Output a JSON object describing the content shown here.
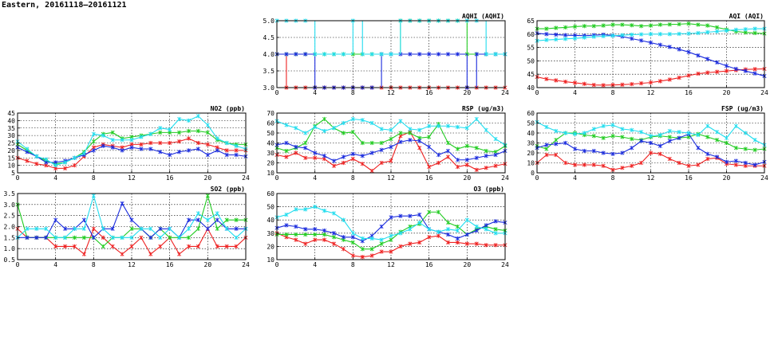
{
  "page_title": "Eastern, 20161118–20161121",
  "colors": {
    "red": "#ee2222",
    "green": "#22cc22",
    "blue": "#1a2bdd",
    "cyan": "#22ddee"
  },
  "chart_data": [
    {
      "type": "line",
      "title": "AQHI (AQHI)",
      "xlim": [
        0,
        24
      ],
      "ylim": [
        3,
        5
      ],
      "xticks": [
        0,
        4,
        8,
        12,
        16,
        20,
        24
      ],
      "yticks": [
        3.0,
        3.5,
        4.0,
        4.5,
        5.0
      ],
      "ytick_labels": [
        "3.0",
        "3.5",
        "4.0",
        "4.5",
        "5.0"
      ],
      "grid": true,
      "step": true,
      "series": [
        {
          "color": "red",
          "values": [
            4,
            3,
            3,
            3,
            3,
            3,
            3,
            3,
            3,
            3,
            3,
            3,
            3,
            3,
            3,
            3,
            3,
            3,
            3,
            3,
            3,
            3,
            3,
            3,
            3
          ]
        },
        {
          "color": "green",
          "values": [
            4,
            4,
            4,
            4,
            4,
            4,
            4,
            4,
            4,
            4,
            4,
            4,
            4,
            5,
            5,
            5,
            5,
            5,
            5,
            5,
            4,
            4,
            4,
            4,
            4
          ]
        },
        {
          "color": "blue",
          "values": [
            4,
            4,
            4,
            4,
            3,
            3,
            3,
            3,
            3,
            3,
            3,
            4,
            4,
            4,
            4,
            4,
            4,
            4,
            4,
            4,
            3,
            4,
            4,
            4,
            4
          ]
        },
        {
          "color": "cyan",
          "values": [
            5,
            5,
            5,
            5,
            4,
            4,
            4,
            4,
            5,
            4,
            4,
            4,
            4,
            5,
            5,
            5,
            5,
            5,
            5,
            5,
            5,
            5,
            4,
            4,
            4
          ]
        }
      ]
    },
    {
      "type": "line",
      "title": "AQI (AQI)",
      "xlim": [
        0,
        24
      ],
      "ylim": [
        40,
        65
      ],
      "xticks": [
        0,
        4,
        8,
        12,
        16,
        20,
        24
      ],
      "yticks": [
        40,
        45,
        50,
        55,
        60,
        65
      ],
      "ytick_labels": [
        "40",
        "45",
        "50",
        "55",
        "60",
        "65"
      ],
      "grid": true,
      "series": [
        {
          "color": "red",
          "values": [
            44,
            43.2,
            42.7,
            42.2,
            41.8,
            41.4,
            41,
            40.9,
            41,
            41.1,
            41.3,
            41.6,
            41.9,
            42.4,
            43,
            43.7,
            44.5,
            45.2,
            45.6,
            45.9,
            46.2,
            46.5,
            46.8,
            46.9,
            47
          ]
        },
        {
          "color": "green",
          "values": [
            62,
            62,
            62.3,
            62.5,
            62.8,
            63,
            63,
            63.2,
            63.5,
            63.5,
            63.3,
            63,
            63.2,
            63.5,
            63.6,
            63.7,
            63.9,
            63.5,
            63.2,
            62.5,
            61.7,
            61,
            60.6,
            60.4,
            60.2
          ]
        },
        {
          "color": "blue",
          "values": [
            60.3,
            60,
            59.8,
            59.6,
            59.5,
            59.4,
            59.6,
            59.8,
            59.5,
            59.1,
            58.3,
            57.6,
            56.8,
            56,
            55.2,
            54.3,
            53.3,
            52,
            50.7,
            49.4,
            48.1,
            47,
            46.2,
            45.3,
            44.3
          ]
        },
        {
          "color": "cyan",
          "values": [
            57.5,
            57.8,
            58,
            58.2,
            58.4,
            58.7,
            59,
            59.2,
            59.4,
            59.6,
            59.8,
            59.9,
            60,
            60,
            60,
            60.1,
            60.2,
            60.4,
            60.7,
            61,
            61.3,
            61.6,
            61.8,
            62,
            62
          ]
        }
      ]
    },
    {
      "type": "line",
      "title": "NO2 (ppb)",
      "xlim": [
        0,
        24
      ],
      "ylim": [
        5,
        45
      ],
      "xticks": [
        0,
        4,
        8,
        12,
        16,
        20,
        24
      ],
      "yticks": [
        5,
        10,
        15,
        20,
        25,
        30,
        35,
        40,
        45
      ],
      "ytick_labels": [
        "5",
        "10",
        "15",
        "20",
        "25",
        "30",
        "35",
        "40",
        "45"
      ],
      "grid": true,
      "series": [
        {
          "color": "red",
          "values": [
            15,
            13,
            11,
            10,
            8,
            8,
            10,
            16,
            22,
            24,
            23,
            22,
            24,
            24,
            25,
            25,
            25,
            26,
            28,
            25,
            24,
            22,
            20,
            20,
            20
          ]
        },
        {
          "color": "green",
          "values": [
            24,
            20,
            16,
            13,
            11,
            12,
            15,
            19,
            26,
            31,
            32,
            28,
            29,
            30,
            31,
            32,
            32,
            32,
            33,
            33,
            32,
            27,
            25,
            24,
            24
          ]
        },
        {
          "color": "blue",
          "values": [
            22,
            19,
            16,
            12,
            12,
            13,
            15,
            17,
            20,
            23,
            22,
            20,
            22,
            21,
            21,
            19,
            17,
            19,
            20,
            21,
            17,
            20,
            17,
            17,
            16
          ]
        },
        {
          "color": "cyan",
          "values": [
            26,
            21,
            16,
            14,
            10,
            12,
            15,
            18,
            31,
            30,
            27,
            27,
            27,
            29,
            31,
            35,
            34,
            41,
            40,
            43,
            37,
            28,
            25,
            23,
            21
          ]
        }
      ]
    },
    {
      "type": "line",
      "title": "RSP (ug/m3)",
      "xlim": [
        0,
        24
      ],
      "ylim": [
        10,
        70
      ],
      "xticks": [
        0,
        4,
        8,
        12,
        16,
        20,
        24
      ],
      "yticks": [
        10,
        20,
        30,
        40,
        50,
        60,
        70
      ],
      "ytick_labels": [
        "10",
        "20",
        "30",
        "40",
        "50",
        "60",
        "70"
      ],
      "grid": true,
      "series": [
        {
          "color": "red",
          "values": [
            28,
            26,
            30,
            25,
            25,
            24,
            17,
            20,
            24,
            19,
            12,
            20,
            22,
            47,
            51,
            35,
            16,
            20,
            26,
            16,
            18,
            13,
            15,
            17,
            19
          ]
        },
        {
          "color": "green",
          "values": [
            35,
            32,
            35,
            40,
            57,
            64,
            55,
            50,
            51,
            40,
            40,
            40,
            44,
            50,
            50,
            45,
            46,
            59,
            40,
            34,
            37,
            35,
            32,
            31,
            37
          ]
        },
        {
          "color": "blue",
          "values": [
            38,
            40,
            36,
            35,
            30,
            27,
            22,
            26,
            29,
            27,
            30,
            33,
            36,
            41,
            43,
            42,
            36,
            28,
            32,
            23,
            23,
            25,
            27,
            28,
            32
          ]
        },
        {
          "color": "cyan",
          "values": [
            62,
            58,
            55,
            50,
            56,
            52,
            55,
            60,
            64,
            63,
            60,
            54,
            53,
            62,
            54,
            53,
            57,
            57,
            57,
            56,
            55,
            64,
            53,
            44,
            38
          ]
        }
      ]
    },
    {
      "type": "line",
      "title": "FSP (ug/m3)",
      "xlim": [
        0,
        24
      ],
      "ylim": [
        0,
        60
      ],
      "xticks": [
        0,
        4,
        8,
        12,
        16,
        20,
        24
      ],
      "yticks": [
        0,
        10,
        20,
        30,
        40,
        50,
        60
      ],
      "ytick_labels": [
        "0",
        "10",
        "20",
        "30",
        "40",
        "50",
        "60"
      ],
      "grid": true,
      "series": [
        {
          "color": "red",
          "values": [
            10,
            18,
            18,
            10,
            8,
            8,
            8,
            7,
            3,
            5,
            7,
            10,
            20,
            19,
            14,
            10,
            7,
            8,
            14,
            15,
            9,
            8,
            7,
            7,
            7
          ]
        },
        {
          "color": "green",
          "values": [
            27,
            24,
            33,
            40,
            40,
            38,
            37,
            35,
            37,
            36,
            34,
            33,
            36,
            37,
            36,
            35,
            36,
            39,
            36,
            33,
            30,
            25,
            24,
            23,
            24
          ]
        },
        {
          "color": "blue",
          "values": [
            25,
            28,
            29,
            30,
            24,
            22,
            22,
            20,
            19,
            20,
            25,
            32,
            30,
            27,
            32,
            35,
            39,
            25,
            19,
            16,
            11,
            12,
            10,
            8,
            11
          ]
        },
        {
          "color": "cyan",
          "values": [
            51,
            46,
            42,
            40,
            39,
            40,
            44,
            47,
            48,
            44,
            43,
            41,
            37,
            38,
            42,
            41,
            40,
            38,
            47,
            41,
            35,
            47,
            40,
            33,
            28
          ]
        }
      ]
    },
    {
      "type": "line",
      "title": "SO2 (ppb)",
      "xlim": [
        0,
        24
      ],
      "ylim": [
        0.5,
        3.5
      ],
      "xticks": [
        0,
        4,
        8,
        12,
        16,
        20,
        24
      ],
      "yticks": [
        0.5,
        1.0,
        1.5,
        2.0,
        2.5,
        3.0,
        3.5
      ],
      "ytick_labels": [
        "0.5",
        "1.0",
        "1.5",
        "2.0",
        "2.5",
        "3.0",
        "3.5"
      ],
      "grid": true,
      "series": [
        {
          "color": "red",
          "values": [
            1.9,
            1.5,
            1.5,
            1.5,
            1.1,
            1.1,
            1.1,
            0.75,
            1.9,
            1.5,
            1.1,
            0.75,
            1.1,
            1.5,
            0.75,
            1.1,
            1.5,
            0.75,
            1.1,
            1.1,
            1.9,
            1.1,
            1.1,
            1.1,
            1.5
          ]
        },
        {
          "color": "green",
          "values": [
            3.0,
            1.5,
            1.5,
            1.5,
            1.5,
            1.5,
            1.5,
            1.5,
            1.5,
            1.1,
            1.5,
            1.5,
            1.9,
            1.9,
            1.5,
            1.9,
            1.5,
            1.5,
            1.5,
            1.9,
            3.4,
            1.9,
            2.3,
            2.3,
            2.3
          ]
        },
        {
          "color": "blue",
          "values": [
            1.5,
            1.5,
            1.5,
            1.5,
            2.3,
            1.9,
            1.9,
            2.3,
            1.5,
            1.9,
            1.9,
            3.05,
            2.3,
            1.9,
            1.5,
            1.9,
            1.9,
            1.5,
            2.3,
            2.3,
            1.9,
            2.3,
            1.9,
            1.9,
            1.9
          ]
        },
        {
          "color": "cyan",
          "values": [
            1.5,
            1.9,
            1.9,
            1.9,
            1.5,
            1.5,
            1.9,
            1.9,
            3.4,
            1.9,
            1.5,
            1.5,
            1.5,
            1.9,
            1.9,
            1.5,
            1.9,
            1.5,
            1.9,
            2.6,
            2.3,
            2.6,
            1.9,
            1.5,
            1.9
          ]
        }
      ]
    },
    {
      "type": "line",
      "title": "O3 (ppb)",
      "xlim": [
        0,
        24
      ],
      "ylim": [
        10,
        60
      ],
      "xticks": [
        0,
        4,
        8,
        12,
        16,
        20,
        24
      ],
      "yticks": [
        10,
        20,
        30,
        40,
        50,
        60
      ],
      "ytick_labels": [
        "10",
        "20",
        "30",
        "40",
        "50",
        "60"
      ],
      "grid": true,
      "series": [
        {
          "color": "red",
          "values": [
            30,
            27,
            25,
            22,
            25,
            25,
            22,
            18,
            13,
            12,
            13,
            16,
            16,
            20,
            22,
            23,
            27,
            28,
            23,
            23,
            22,
            22,
            21,
            21,
            21
          ]
        },
        {
          "color": "green",
          "values": [
            29,
            29,
            29,
            29,
            29,
            29,
            27,
            25,
            23,
            18,
            18,
            22,
            25,
            31,
            35,
            37,
            46,
            46,
            38,
            35,
            29,
            33,
            35,
            33,
            32
          ]
        },
        {
          "color": "blue",
          "values": [
            34,
            36,
            35,
            33,
            33,
            32,
            30,
            27,
            27,
            24,
            28,
            35,
            42,
            43,
            43,
            44,
            33,
            31,
            29,
            26,
            29,
            32,
            36,
            39,
            38
          ]
        },
        {
          "color": "cyan",
          "values": [
            42,
            44,
            48,
            48,
            50,
            47,
            45,
            40,
            30,
            26,
            26,
            25,
            28,
            30,
            33,
            38,
            33,
            31,
            33,
            32,
            40,
            35,
            33,
            30,
            30
          ]
        }
      ]
    }
  ]
}
